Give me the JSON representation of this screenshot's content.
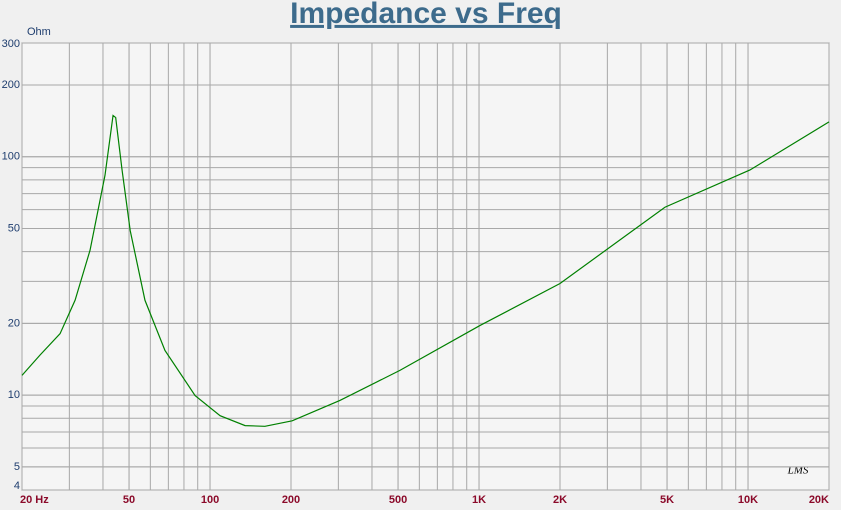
{
  "chart_data": {
    "type": "line",
    "title": "Impedance vs Freq",
    "y_label": "Ohm",
    "watermark": "LMS",
    "x": [
      20,
      23.3,
      27.7,
      31.5,
      35.8,
      40.7,
      43.6,
      44.6,
      47.1,
      50.5,
      57.3,
      68,
      88,
      109,
      135,
      160,
      202,
      304,
      508,
      1009,
      2000,
      4910,
      10170,
      20000
    ],
    "series": [
      {
        "name": "Impedance",
        "color": "#008000",
        "values": [
          12.1,
          14.7,
          18.1,
          25,
          40.5,
          83.6,
          149,
          146,
          87.9,
          49,
          25,
          15.4,
          9.96,
          8.2,
          7.45,
          7.4,
          7.8,
          9.5,
          12.7,
          19.6,
          29.4,
          61.4,
          88,
          140
        ]
      }
    ],
    "xscale": "log",
    "yscale": "log",
    "xlim": [
      20,
      20000
    ],
    "ylim": [
      4,
      300
    ],
    "xticks": [
      {
        "value": 20,
        "label": "20 Hz"
      },
      50,
      100,
      200,
      500,
      {
        "value": 1000,
        "label": "1K"
      },
      {
        "value": 2000,
        "label": "2K"
      },
      {
        "value": 5000,
        "label": "5K"
      },
      {
        "value": 10000,
        "label": "10K"
      },
      {
        "value": 20000,
        "label": "20K"
      }
    ],
    "yticks": [
      4,
      5,
      10,
      20,
      50,
      100,
      200,
      300
    ],
    "grid": true
  }
}
